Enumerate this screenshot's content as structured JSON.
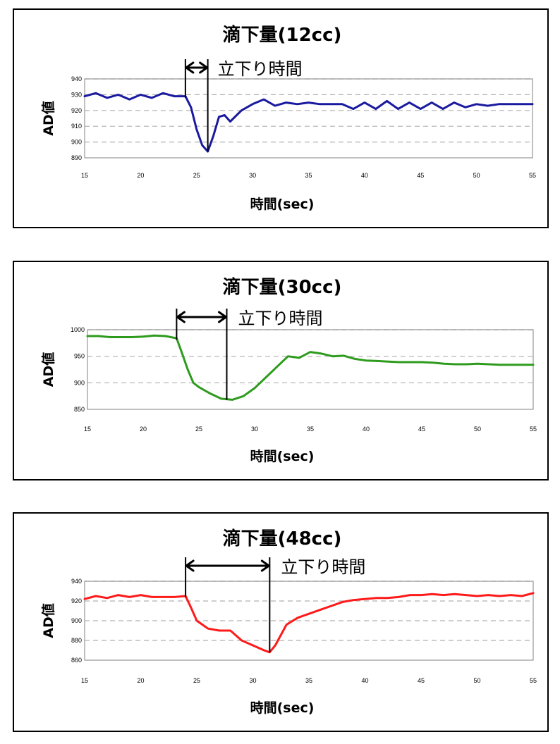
{
  "chart_data": [
    {
      "type": "line",
      "title": "滴下量(12cc)",
      "annotation": "立下り時間",
      "xlabel": "時間(sec)",
      "ylabel": "AD値",
      "xlim": [
        15,
        55
      ],
      "ylim": [
        890,
        940
      ],
      "xticks": [
        15,
        20,
        25,
        30,
        35,
        40,
        45,
        50,
        55
      ],
      "yticks": [
        890,
        900,
        910,
        920,
        930,
        940
      ],
      "grid": "horizontal dashed",
      "line_color": "#1a1aa0",
      "fall_start_x": 24,
      "fall_end_x": 26,
      "x": [
        15,
        16,
        17,
        18,
        19,
        20,
        21,
        22,
        23,
        24,
        24.5,
        25,
        25.5,
        26,
        26.5,
        27,
        27.5,
        28,
        29,
        30,
        31,
        32,
        33,
        34,
        35,
        36,
        37,
        38,
        39,
        40,
        41,
        42,
        43,
        44,
        45,
        46,
        47,
        48,
        49,
        50,
        51,
        52,
        53,
        54,
        55
      ],
      "y": [
        929,
        931,
        928,
        930,
        927,
        930,
        928,
        931,
        929,
        929,
        922,
        908,
        898,
        894,
        904,
        916,
        917,
        913,
        920,
        924,
        927,
        923,
        925,
        924,
        925,
        924,
        924,
        924,
        921,
        925,
        921,
        926,
        921,
        925,
        921,
        925,
        921,
        925,
        922,
        924,
        923,
        924,
        924,
        924,
        924
      ]
    },
    {
      "type": "line",
      "title": "滴下量(30cc)",
      "annotation": "立下り時間",
      "xlabel": "時間(sec)",
      "ylabel": "AD値",
      "xlim": [
        15,
        55
      ],
      "ylim": [
        850,
        1000
      ],
      "xticks": [
        15,
        20,
        25,
        30,
        35,
        40,
        45,
        50,
        55
      ],
      "yticks": [
        850,
        900,
        950,
        1000
      ],
      "grid": "horizontal dashed",
      "line_color": "#2e9b1e",
      "fall_start_x": 23,
      "fall_end_x": 27.5,
      "x": [
        15,
        16,
        17,
        18,
        19,
        20,
        21,
        22,
        23,
        23.5,
        24,
        24.5,
        25,
        26,
        27,
        28,
        29,
        30,
        31,
        32,
        33,
        34,
        35,
        36,
        37,
        38,
        39,
        40,
        41,
        42,
        43,
        44,
        45,
        46,
        47,
        48,
        49,
        50,
        51,
        52,
        53,
        54,
        55
      ],
      "y": [
        988,
        988,
        986,
        986,
        986,
        987,
        989,
        988,
        984,
        955,
        925,
        900,
        892,
        880,
        870,
        868,
        875,
        890,
        910,
        930,
        950,
        947,
        958,
        955,
        950,
        951,
        945,
        942,
        941,
        940,
        939,
        939,
        939,
        938,
        936,
        935,
        935,
        936,
        935,
        934,
        934,
        934,
        934
      ]
    },
    {
      "type": "line",
      "title": "滴下量(48cc)",
      "annotation": "立下り時間",
      "xlabel": "時間(sec)",
      "ylabel": "AD値",
      "xlim": [
        15,
        55
      ],
      "ylim": [
        860,
        940
      ],
      "xticks": [
        15,
        20,
        25,
        30,
        35,
        40,
        45,
        50,
        55
      ],
      "yticks": [
        860,
        880,
        900,
        920,
        940
      ],
      "grid": "horizontal dashed",
      "line_color": "#ff1a1a",
      "fall_start_x": 24,
      "fall_end_x": 31.5,
      "x": [
        15,
        16,
        17,
        18,
        19,
        20,
        21,
        22,
        23,
        24,
        24.5,
        25,
        26,
        27,
        28,
        29,
        30,
        31,
        31.5,
        32,
        33,
        34,
        35,
        36,
        37,
        38,
        39,
        40,
        41,
        42,
        43,
        44,
        45,
        46,
        47,
        48,
        49,
        50,
        51,
        52,
        53,
        54,
        55
      ],
      "y": [
        922,
        925,
        923,
        926,
        924,
        926,
        924,
        924,
        924,
        925,
        913,
        900,
        892,
        890,
        890,
        880,
        875,
        870,
        868,
        875,
        896,
        903,
        907,
        911,
        915,
        919,
        921,
        922,
        923,
        923,
        924,
        926,
        926,
        927,
        926,
        927,
        926,
        925,
        926,
        925,
        926,
        925,
        928
      ]
    }
  ]
}
